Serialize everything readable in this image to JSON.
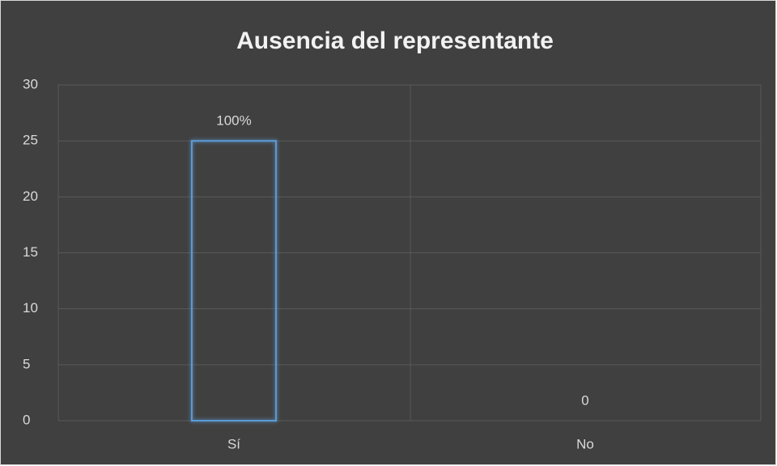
{
  "chart_data": {
    "type": "bar",
    "title": "Ausencia del representante",
    "categories": [
      "Sí",
      "No"
    ],
    "values": [
      25,
      0
    ],
    "value_labels": [
      "100%",
      "0"
    ],
    "color": "#5b9bd5",
    "ylim": [
      0,
      30
    ],
    "yticks": [
      0,
      5,
      10,
      15,
      20,
      25,
      30
    ],
    "grid": true
  }
}
